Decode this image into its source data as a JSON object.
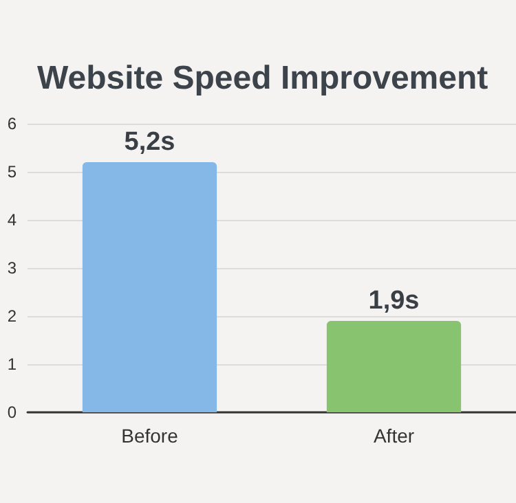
{
  "chart_data": {
    "type": "bar",
    "title": "Website Speed Improvement",
    "categories": [
      "Before",
      "After"
    ],
    "values": [
      5.2,
      1.9
    ],
    "colors": [
      "#85b8e6",
      "#88c46f"
    ],
    "value_labels": [
      "5,2s",
      "1,9s"
    ],
    "ylim": [
      0,
      6
    ],
    "yticks": [
      0,
      1,
      2,
      3,
      4,
      5,
      6
    ],
    "grid": "y"
  }
}
